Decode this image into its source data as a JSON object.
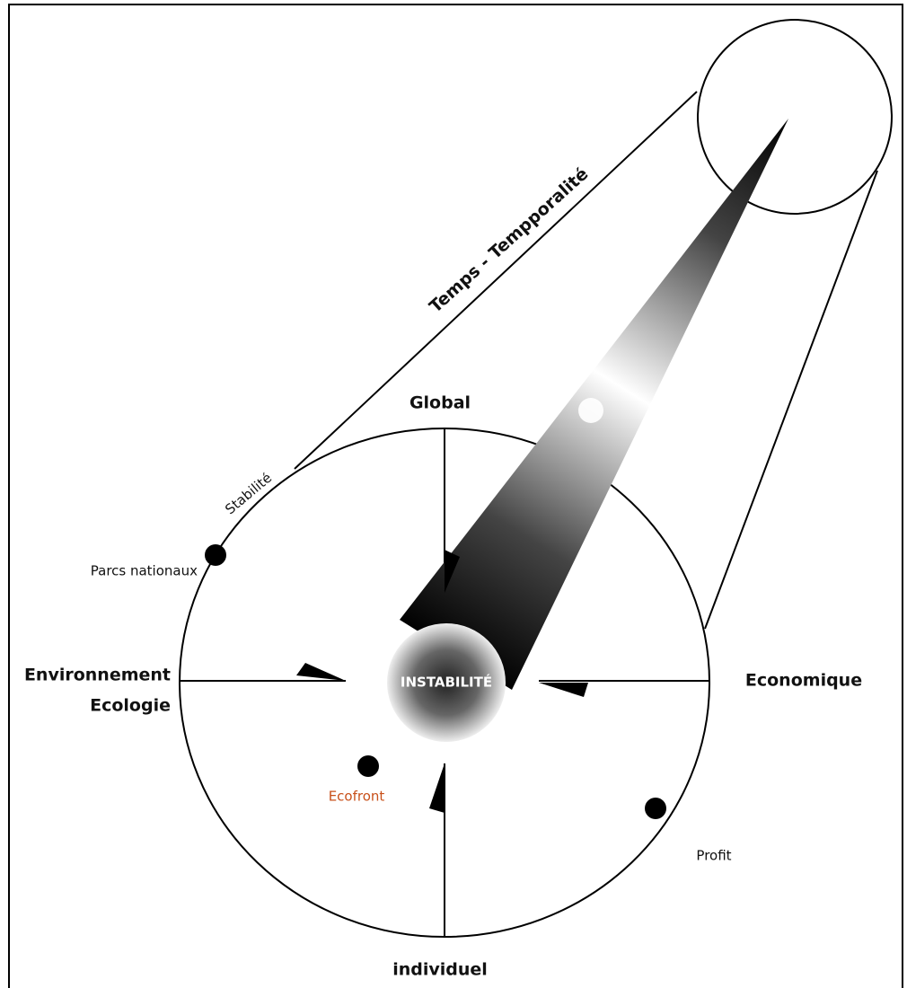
{
  "diagram": {
    "title": "Temps - Tempporalité",
    "center": "INSTABILITÉ",
    "axes": {
      "top": "Global",
      "left": [
        "Environnement",
        "Ecologie"
      ],
      "right": "Economique",
      "bottom": "individuel"
    },
    "labels": {
      "stability": "Stabilité",
      "parks": "Parcs nationaux",
      "ecofront": "Ecofront",
      "profit": "Profit"
    }
  }
}
